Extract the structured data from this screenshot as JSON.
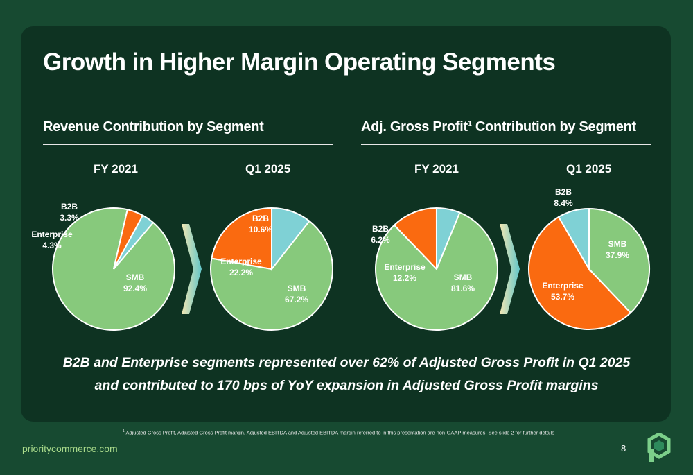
{
  "title": "Growth in Higher Margin Operating Segments",
  "sections": [
    {
      "title": "Revenue Contribution by Segment",
      "footnote_mark": ""
    },
    {
      "title": "Adj. Gross Profit",
      "footnote_mark": "1",
      "title_suffix": " Contribution by Segment"
    }
  ],
  "summary": {
    "line1": "B2B and Enterprise segments represented over 62% of Adjusted Gross Profit in Q1 2025",
    "line2": "and contributed to 170 bps of YoY expansion in Adjusted Gross Profit margins"
  },
  "footnote": {
    "mark": "1",
    "text": " Adjusted Gross Profit, Adjusted Gross Profit margin, Adjusted EBITDA and Adjusted EBITDA margin referred to in this presentation are non-GAAP measures. See slide 2 for further details"
  },
  "footer": {
    "url": "prioritycommerce.com",
    "page": "8"
  },
  "colors": {
    "SMB": "#87c97c",
    "Enterprise": "#fa6a10",
    "B2B": "#7fd1d5",
    "panel": "#0e3322",
    "background": "#174a31"
  },
  "icons": [
    "chevron-arrow-icon",
    "priority-logo-icon"
  ],
  "chart_data": [
    {
      "type": "pie",
      "section": "Revenue Contribution by Segment",
      "title": "FY 2021",
      "categories": [
        "SMB",
        "Enterprise",
        "B2B"
      ],
      "values": [
        92.4,
        4.3,
        3.3
      ],
      "labels": [
        "92.4%",
        "4.3%",
        "3.3%"
      ]
    },
    {
      "type": "pie",
      "section": "Revenue Contribution by Segment",
      "title": "Q1 2025",
      "categories": [
        "SMB",
        "Enterprise",
        "B2B"
      ],
      "values": [
        67.2,
        22.2,
        10.6
      ],
      "labels": [
        "67.2%",
        "22.2%",
        "10.6%"
      ]
    },
    {
      "type": "pie",
      "section": "Adj. Gross Profit Contribution by Segment",
      "title": "FY 2021",
      "categories": [
        "SMB",
        "Enterprise",
        "B2B"
      ],
      "values": [
        81.6,
        12.2,
        6.2
      ],
      "labels": [
        "81.6%",
        "12.2%",
        "6.2%"
      ]
    },
    {
      "type": "pie",
      "section": "Adj. Gross Profit Contribution by Segment",
      "title": "Q1 2025",
      "categories": [
        "SMB",
        "Enterprise",
        "B2B"
      ],
      "values": [
        37.9,
        53.7,
        8.4
      ],
      "labels": [
        "37.9%",
        "53.7%",
        "8.4%"
      ]
    }
  ]
}
